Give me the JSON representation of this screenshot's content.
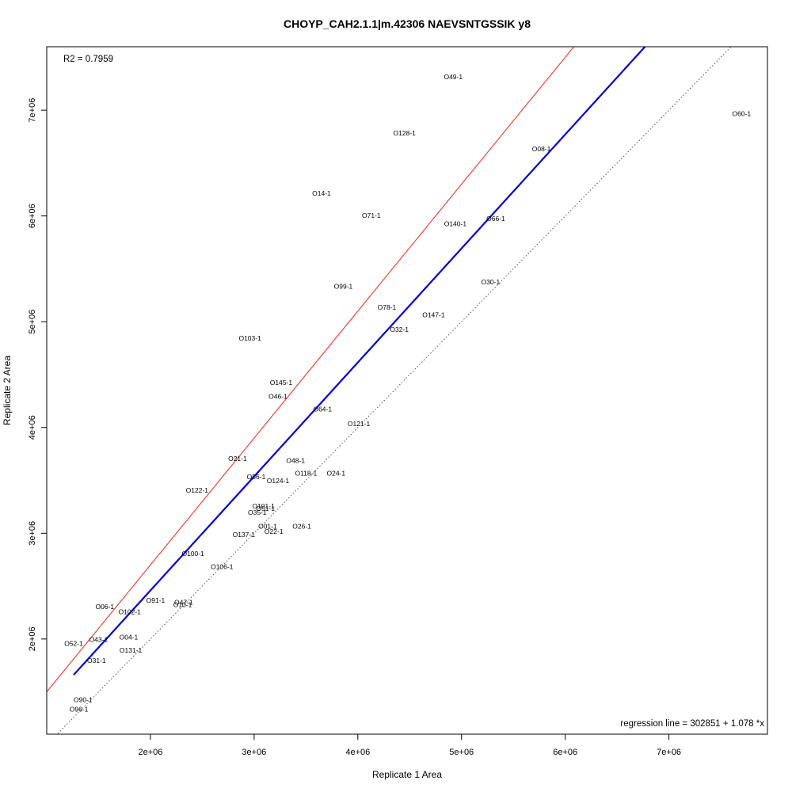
{
  "chart_data": {
    "type": "scatter",
    "title": "CHOYP_CAH2.1.1|m.42306 NAEVSNTGSSIK y8",
    "xlabel": "Replicate 1 Area",
    "ylabel": "Replicate 2 Area",
    "r2_text": "R2 = 0.7959",
    "regression_text": "regression line = 302851 + 1.078 *x",
    "xlim": [
      1000000,
      7950000
    ],
    "ylim": [
      1100000,
      7600000
    ],
    "xticks": [
      {
        "value": 2000000,
        "label": "2e+06"
      },
      {
        "value": 3000000,
        "label": "3e+06"
      },
      {
        "value": 4000000,
        "label": "4e+06"
      },
      {
        "value": 5000000,
        "label": "5e+06"
      },
      {
        "value": 6000000,
        "label": "6e+06"
      },
      {
        "value": 7000000,
        "label": "7e+06"
      }
    ],
    "yticks": [
      {
        "value": 2000000,
        "label": "2e+06"
      },
      {
        "value": 3000000,
        "label": "3e+06"
      },
      {
        "value": 4000000,
        "label": "4e+06"
      },
      {
        "value": 5000000,
        "label": "5e+06"
      },
      {
        "value": 6000000,
        "label": "6e+06"
      },
      {
        "value": 7000000,
        "label": "7e+06"
      }
    ],
    "lines": {
      "regression": {
        "intercept": 302851,
        "slope": 1.078,
        "color": "#0000cc",
        "x_range": [
          1260000,
          7260000
        ]
      },
      "red": {
        "intercept": 300000,
        "slope": 1.2,
        "color": "#e8463c"
      },
      "identity": {
        "intercept": 0,
        "slope": 1,
        "color": "#555555"
      }
    },
    "points": [
      {
        "label": "O60-1",
        "x": 7700000,
        "y": 6960000
      },
      {
        "label": "O49-1",
        "x": 4920000,
        "y": 7310000
      },
      {
        "label": "O128-1",
        "x": 4450000,
        "y": 6780000
      },
      {
        "label": "O08-1",
        "x": 5770000,
        "y": 6630000
      },
      {
        "label": "O14-1",
        "x": 3650000,
        "y": 6210000
      },
      {
        "label": "O71-1",
        "x": 4130000,
        "y": 6000000
      },
      {
        "label": "O140-1",
        "x": 4940000,
        "y": 5920000
      },
      {
        "label": "O66-1",
        "x": 5330000,
        "y": 5970000
      },
      {
        "label": "O99-1",
        "x": 3860000,
        "y": 5330000
      },
      {
        "label": "O30-1",
        "x": 5280000,
        "y": 5370000
      },
      {
        "label": "O78-1",
        "x": 4280000,
        "y": 5130000
      },
      {
        "label": "O147-1",
        "x": 4730000,
        "y": 5060000
      },
      {
        "label": "O32-1",
        "x": 4400000,
        "y": 4920000
      },
      {
        "label": "O103-1",
        "x": 2960000,
        "y": 4840000
      },
      {
        "label": "O145-1",
        "x": 3260000,
        "y": 4420000
      },
      {
        "label": "O46-1",
        "x": 3230000,
        "y": 4290000
      },
      {
        "label": "O64-1",
        "x": 3660000,
        "y": 4170000
      },
      {
        "label": "O121-1",
        "x": 4010000,
        "y": 4030000
      },
      {
        "label": "O21-1",
        "x": 2840000,
        "y": 3700000
      },
      {
        "label": "O48-1",
        "x": 3400000,
        "y": 3680000
      },
      {
        "label": "O118-1",
        "x": 3500000,
        "y": 3560000
      },
      {
        "label": "O24-1",
        "x": 3790000,
        "y": 3560000
      },
      {
        "label": "O56-1",
        "x": 3020000,
        "y": 3530000
      },
      {
        "label": "O124-1",
        "x": 3230000,
        "y": 3490000
      },
      {
        "label": "O122-1",
        "x": 2450000,
        "y": 3400000
      },
      {
        "label": "O101-1",
        "x": 3090000,
        "y": 3250000
      },
      {
        "label": "O51-1",
        "x": 3110000,
        "y": 3230000
      },
      {
        "label": "O35-1",
        "x": 3030000,
        "y": 3190000
      },
      {
        "label": "O01-1",
        "x": 3130000,
        "y": 3060000
      },
      {
        "label": "O26-1",
        "x": 3460000,
        "y": 3060000
      },
      {
        "label": "O22-1",
        "x": 3190000,
        "y": 3010000
      },
      {
        "label": "O137-1",
        "x": 2900000,
        "y": 2980000
      },
      {
        "label": "O100-1",
        "x": 2410000,
        "y": 2800000
      },
      {
        "label": "O106-1",
        "x": 2690000,
        "y": 2680000
      },
      {
        "label": "O91-1",
        "x": 2050000,
        "y": 2360000
      },
      {
        "label": "O47-1",
        "x": 2320000,
        "y": 2340000
      },
      {
        "label": "O10-1",
        "x": 2310000,
        "y": 2320000
      },
      {
        "label": "O06-1",
        "x": 1560000,
        "y": 2300000
      },
      {
        "label": "O102-1",
        "x": 1800000,
        "y": 2250000
      },
      {
        "label": "O52-1",
        "x": 1260000,
        "y": 1950000
      },
      {
        "label": "O43-1",
        "x": 1500000,
        "y": 1990000
      },
      {
        "label": "O04-1",
        "x": 1790000,
        "y": 2010000
      },
      {
        "label": "O131-1",
        "x": 1810000,
        "y": 1890000
      },
      {
        "label": "O31-1",
        "x": 1480000,
        "y": 1790000
      },
      {
        "label": "O90-1",
        "x": 1350000,
        "y": 1420000
      },
      {
        "label": "O96-1",
        "x": 1310000,
        "y": 1330000
      }
    ]
  }
}
